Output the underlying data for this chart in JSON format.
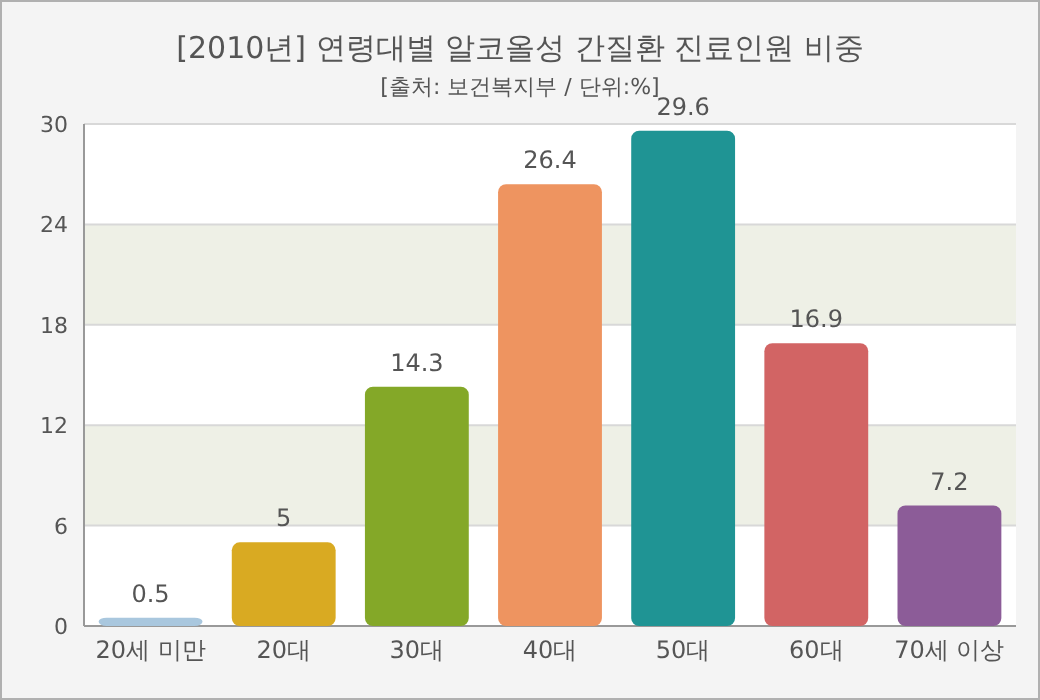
{
  "chart_data": {
    "type": "bar",
    "title": "[2010년] 연령대별 알코올성 간질환 진료인원 비중",
    "subtitle": "[출처: 보건복지부 / 단위:%]",
    "categories": [
      "20세 미만",
      "20대",
      "30대",
      "40대",
      "50대",
      "60대",
      "70세 이상"
    ],
    "values": [
      0.5,
      5,
      14.3,
      26.4,
      29.6,
      16.9,
      7.2
    ],
    "colors": [
      "#a9c7de",
      "#d9aa22",
      "#84a828",
      "#ee9460",
      "#1f9494",
      "#d26464",
      "#8c5c98"
    ],
    "ylim": [
      0,
      30
    ],
    "yticks": [
      0,
      6,
      12,
      18,
      24,
      30
    ],
    "grid": "y",
    "data_labels": true
  }
}
